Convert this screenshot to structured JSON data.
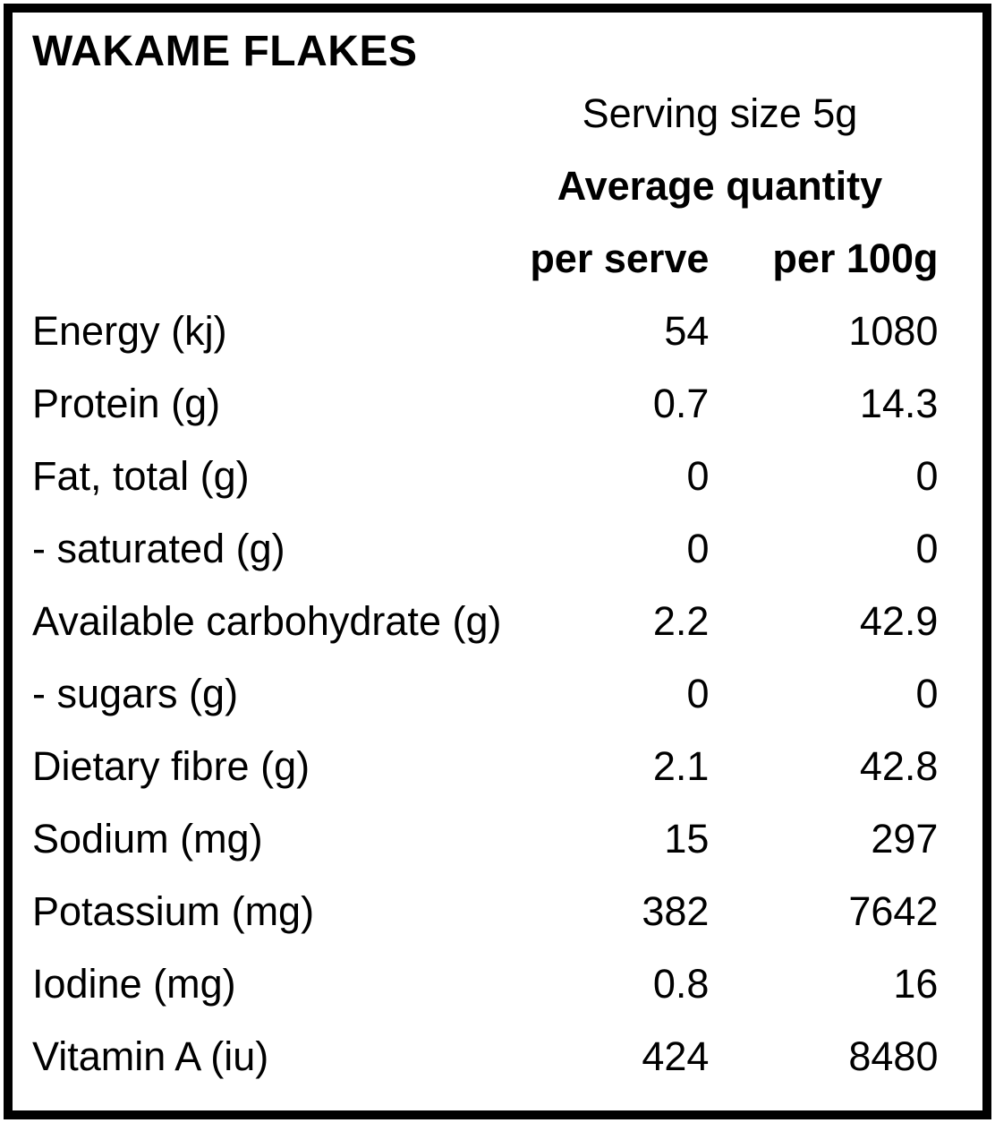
{
  "panel": {
    "title": "WAKAME FLAKES",
    "serving_size_label": "Serving size 5g",
    "quantity_header": "Average quantity",
    "columns": {
      "per_serve": "per serve",
      "per_100g": "per 100g"
    }
  },
  "rows": [
    {
      "label": "Energy (kj)",
      "per_serve": "54",
      "per_100g": "1080"
    },
    {
      "label": "Protein (g)",
      "per_serve": "0.7",
      "per_100g": "14.3"
    },
    {
      "label": "Fat, total (g)",
      "per_serve": "0",
      "per_100g": "0"
    },
    {
      "label": "- saturated (g)",
      "per_serve": "0",
      "per_100g": "0"
    },
    {
      "label": "Available carbohydrate (g)",
      "per_serve": "2.2",
      "per_100g": "42.9"
    },
    {
      "label": "- sugars (g)",
      "per_serve": "0",
      "per_100g": "0"
    },
    {
      "label": "Dietary fibre (g)",
      "per_serve": "2.1",
      "per_100g": "42.8"
    },
    {
      "label": "Sodium (mg)",
      "per_serve": "15",
      "per_100g": "297"
    },
    {
      "label": "Potassium (mg)",
      "per_serve": "382",
      "per_100g": "7642"
    },
    {
      "label": "Iodine (mg)",
      "per_serve": "0.8",
      "per_100g": "16"
    },
    {
      "label": "Vitamin A (iu)",
      "per_serve": "424",
      "per_100g": "8480"
    }
  ],
  "colors": {
    "text": "#000000",
    "background": "#ffffff",
    "border": "#000000"
  }
}
